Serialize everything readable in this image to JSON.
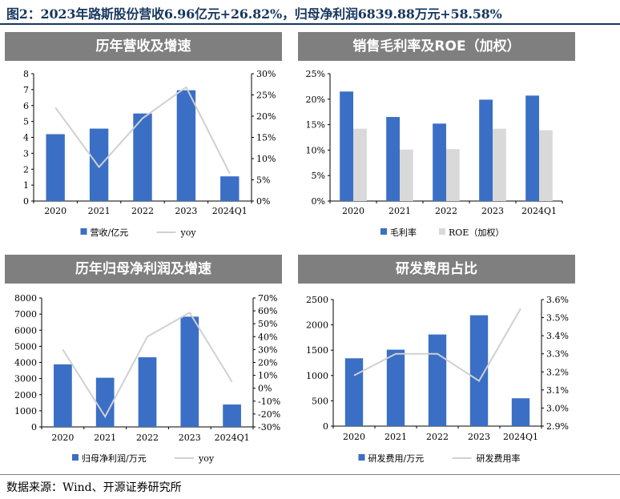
{
  "figure": {
    "title": "图2：2023年路斯股份营收6.96亿元+26.82%，归母净利润6839.88万元+58.58%",
    "source": "数据来源：Wind、开源证券研究所"
  },
  "colors": {
    "bar_blue": "#3a6fc5",
    "line_gray": "#d0d0d0",
    "bar_gray": "#d9d9d9",
    "header_gray": "#7f7f7f",
    "title_navy": "#17375e"
  },
  "chart_data": [
    {
      "id": "revenue",
      "type": "bar",
      "title": "历年营收及增速",
      "categories": [
        "2020",
        "2021",
        "2022",
        "2023",
        "2024Q1"
      ],
      "series": [
        {
          "name": "营收/亿元",
          "kind": "bar",
          "axis": "left",
          "values": [
            4.2,
            4.55,
            5.5,
            6.96,
            1.55
          ]
        },
        {
          "name": "yoy",
          "kind": "line",
          "axis": "right",
          "values": [
            22.0,
            8.0,
            19.5,
            26.82,
            6.5
          ]
        }
      ],
      "ylim_left": [
        0,
        8
      ],
      "yticks_left": [
        0,
        1,
        2,
        3,
        4,
        5,
        6,
        7,
        8
      ],
      "ylim_right": [
        0,
        30
      ],
      "yticks_right": [
        0,
        5,
        10,
        15,
        20,
        25,
        30
      ],
      "right_format": "percent",
      "legend_position": "bottom"
    },
    {
      "id": "margin",
      "type": "bar",
      "title": "销售毛利率及ROE（加权）",
      "categories": [
        "2020",
        "2021",
        "2022",
        "2023",
        "2024Q1"
      ],
      "series": [
        {
          "name": "毛利率",
          "kind": "bar",
          "axis": "left",
          "values": [
            21.5,
            16.5,
            15.2,
            19.9,
            20.7
          ]
        },
        {
          "name": "ROE（加权）",
          "kind": "bar",
          "axis": "left",
          "values": [
            14.2,
            10.1,
            10.2,
            14.2,
            13.9
          ]
        }
      ],
      "ylim_left": [
        0,
        25
      ],
      "yticks_left": [
        0,
        5,
        10,
        15,
        20,
        25
      ],
      "left_format": "percent",
      "legend_position": "bottom"
    },
    {
      "id": "profit",
      "type": "bar",
      "title": "历年归母净利润及增速",
      "categories": [
        "2020",
        "2021",
        "2022",
        "2023",
        "2024Q1"
      ],
      "series": [
        {
          "name": "归母净利润/万元",
          "kind": "bar",
          "axis": "left",
          "values": [
            3880,
            3050,
            4320,
            6839.88,
            1390
          ]
        },
        {
          "name": "yoy",
          "kind": "line",
          "axis": "right",
          "values": [
            30,
            -22,
            40,
            58.58,
            5
          ]
        }
      ],
      "ylim_left": [
        0,
        8000
      ],
      "yticks_left": [
        0,
        1000,
        2000,
        3000,
        4000,
        5000,
        6000,
        7000,
        8000
      ],
      "ylim_right": [
        -30,
        70
      ],
      "yticks_right": [
        -30,
        -20,
        -10,
        0,
        10,
        20,
        30,
        40,
        50,
        60,
        70
      ],
      "right_format": "percent",
      "legend_position": "bottom"
    },
    {
      "id": "rd",
      "type": "bar",
      "title": "研发费用占比",
      "categories": [
        "2020",
        "2021",
        "2022",
        "2023",
        "2024Q1"
      ],
      "series": [
        {
          "name": "研发费用/万元",
          "kind": "bar",
          "axis": "left",
          "values": [
            1340,
            1510,
            1810,
            2190,
            550
          ]
        },
        {
          "name": "研发费用率",
          "kind": "line",
          "axis": "right",
          "values": [
            3.18,
            3.3,
            3.3,
            3.15,
            3.55
          ]
        }
      ],
      "ylim_left": [
        0,
        2500
      ],
      "yticks_left": [
        0,
        500,
        1000,
        1500,
        2000,
        2500
      ],
      "ylim_right": [
        2.9,
        3.6
      ],
      "yticks_right": [
        2.9,
        3.0,
        3.1,
        3.2,
        3.3,
        3.4,
        3.5,
        3.6
      ],
      "right_format": "percent1",
      "legend_position": "bottom"
    }
  ]
}
